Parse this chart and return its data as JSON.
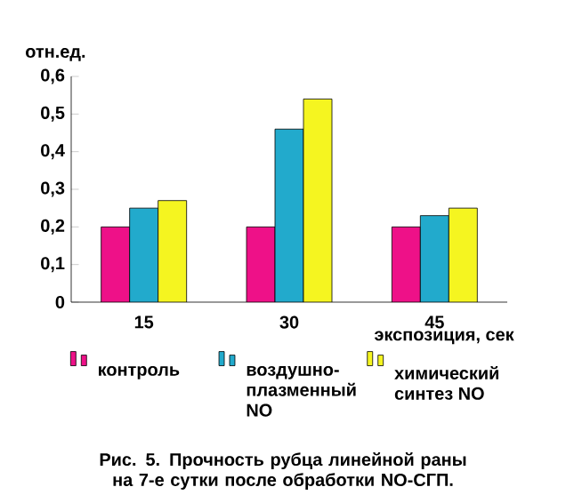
{
  "chart_data": {
    "type": "bar",
    "ylabel": "отн.ед.",
    "xlabel": "экспозиция, сек",
    "categories": [
      "15",
      "30",
      "45"
    ],
    "series": [
      {
        "name": "контроль",
        "color": "#ee1188",
        "values": [
          0.2,
          0.2,
          0.2
        ]
      },
      {
        "name": "воздушно-плазменный NO",
        "color": "#22aacc",
        "values": [
          0.25,
          0.46,
          0.23
        ]
      },
      {
        "name": "химический синтез NO",
        "color": "#f5f520",
        "values": [
          0.27,
          0.54,
          0.25
        ]
      }
    ],
    "ylim": [
      0,
      0.6
    ],
    "yticks": [
      0,
      {
        "value": 0.1,
        "label": "0,1"
      },
      {
        "value": 0.2,
        "label": "0,2"
      },
      {
        "value": 0.3,
        "label": "0,3"
      },
      {
        "value": 0.4,
        "label": "0,4"
      },
      {
        "value": 0.5,
        "label": "0,5"
      },
      {
        "value": 0.6,
        "label": "0,6"
      }
    ],
    "grid": false,
    "legend": "bottom",
    "annotations": [
      "Рис. 5. Прочность рубца линейной раны  на 7-е сутки после обработки NO-СГП."
    ]
  }
}
